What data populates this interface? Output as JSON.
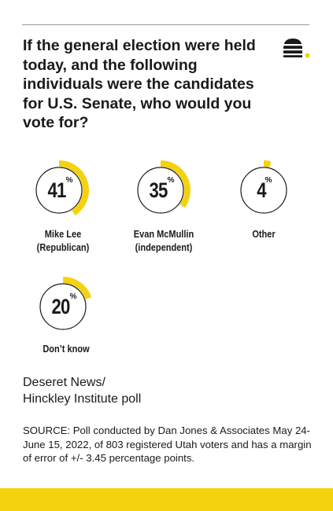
{
  "question": "If the general election were held today, and the following individuals were the candidates for U.S. Senate, who would you vote for?",
  "colors": {
    "accent": "#f5d20f",
    "ring": "#1a1a1a",
    "text": "#1a1a1a"
  },
  "logo": {
    "icon": "beehive-icon"
  },
  "chart_data": {
    "type": "donut",
    "title": "If the general election were held today, and the following individuals were the candidates for U.S. Senate, who would you vote for?",
    "unit": "%",
    "candidates": [
      {
        "name": "Mike Lee",
        "detail": "(Republican)",
        "value": 41
      },
      {
        "name": "Evan McMullin",
        "detail": "(independent)",
        "value": 35
      },
      {
        "name": "Other",
        "detail": "",
        "value": 4
      },
      {
        "name": "Don’t know",
        "detail": "",
        "value": 20
      }
    ]
  },
  "poll": {
    "line1": "Deseret News/",
    "line2": "Hinckley Institute poll"
  },
  "source": "SOURCE: Poll conducted by Dan Jones & Associates May 24-June 15, 2022, of 803 registered Utah voters and has a margin of error of +/- 3.45 percentage points."
}
